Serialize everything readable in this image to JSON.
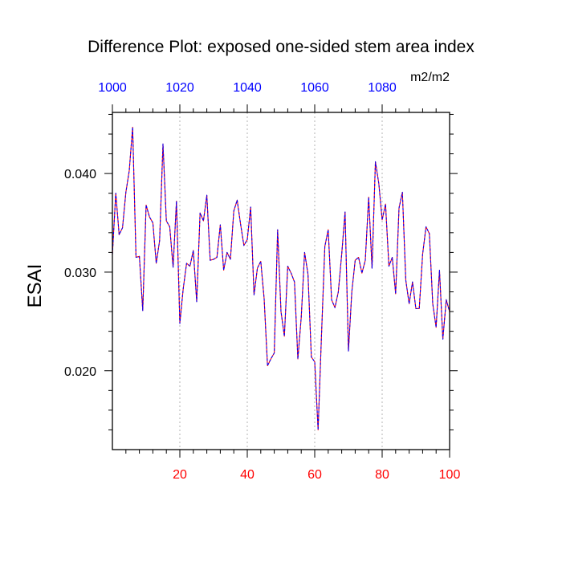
{
  "chart_data": {
    "type": "line",
    "title": "Difference Plot: exposed one-sided stem area index",
    "ylabel": "ESAI",
    "units_label": "m2/m2",
    "xlim": [
      0,
      100
    ],
    "ylim": [
      0.012,
      0.0462
    ],
    "top_xlim": [
      1000,
      1100
    ],
    "x_ticks": [
      20,
      40,
      60,
      80,
      100
    ],
    "y_ticks": [
      0.02,
      0.03,
      0.04
    ],
    "y_tick_labels": [
      "0.020",
      "0.030",
      "0.040"
    ],
    "top_ticks": [
      1000,
      1020,
      1040,
      1060,
      1080
    ],
    "grid": "vertical dashed at major x ticks",
    "colors": {
      "bottom_tick_labels": "#ff0000",
      "top_tick_labels": "#0000ff",
      "series_a": "#ff0000",
      "series_b": "#0000ff"
    },
    "x": [
      0,
      1,
      2,
      3,
      4,
      5,
      6,
      7,
      8,
      9,
      10,
      11,
      12,
      13,
      14,
      15,
      16,
      17,
      18,
      19,
      20,
      21,
      22,
      23,
      24,
      25,
      26,
      27,
      28,
      29,
      30,
      31,
      32,
      33,
      34,
      35,
      36,
      37,
      38,
      39,
      40,
      41,
      42,
      43,
      44,
      45,
      46,
      47,
      48,
      49,
      50,
      51,
      52,
      53,
      54,
      55,
      56,
      57,
      58,
      59,
      60,
      61,
      62,
      63,
      64,
      65,
      66,
      67,
      68,
      69,
      70,
      71,
      72,
      73,
      74,
      75,
      76,
      77,
      78,
      79,
      80,
      81,
      82,
      83,
      84,
      85,
      86,
      87,
      88,
      89,
      90,
      91,
      92,
      93,
      94,
      95,
      96,
      97,
      98,
      99,
      100
    ],
    "series": [
      {
        "values": [
          0.0318,
          0.038,
          0.0338,
          0.0345,
          0.0381,
          0.0403,
          0.0447,
          0.0315,
          0.0316,
          0.0261,
          0.0368,
          0.0356,
          0.035,
          0.0309,
          0.0332,
          0.043,
          0.0352,
          0.0346,
          0.0305,
          0.0372,
          0.0248,
          0.0283,
          0.0309,
          0.0306,
          0.0322,
          0.027,
          0.036,
          0.0352,
          0.0378,
          0.0312,
          0.0313,
          0.0315,
          0.0348,
          0.0302,
          0.032,
          0.0313,
          0.0362,
          0.0373,
          0.0349,
          0.0327,
          0.0333,
          0.0366,
          0.0277,
          0.0304,
          0.0311,
          0.0273,
          0.0205,
          0.0212,
          0.0218,
          0.0343,
          0.026,
          0.0235,
          0.0306,
          0.0299,
          0.029,
          0.0212,
          0.0254,
          0.032,
          0.0298,
          0.0214,
          0.0209,
          0.014,
          0.0235,
          0.0326,
          0.0343,
          0.0272,
          0.0264,
          0.028,
          0.0318,
          0.0361,
          0.022,
          0.028,
          0.0312,
          0.0315,
          0.0299,
          0.0312,
          0.0376,
          0.0304,
          0.0412,
          0.039,
          0.0353,
          0.0369,
          0.0306,
          0.0315,
          0.0278,
          0.0365,
          0.0381,
          0.0292,
          0.0268,
          0.029,
          0.0263,
          0.0263,
          0.0318,
          0.0346,
          0.0339,
          0.0268,
          0.0244,
          0.0302,
          0.0232,
          0.0272,
          0.026
        ]
      }
    ]
  }
}
